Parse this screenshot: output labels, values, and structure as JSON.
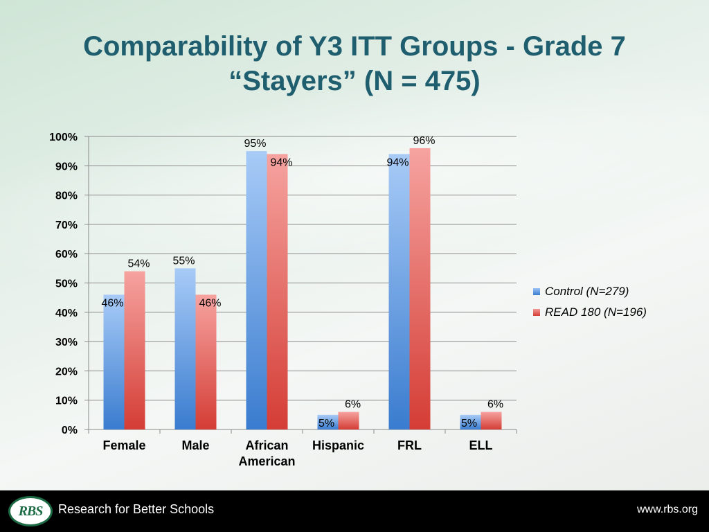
{
  "slide": {
    "title_line1": "Comparability of Y3 ITT Groups - Grade 7",
    "title_line2": "“Stayers” (N = 475)"
  },
  "chart_data": {
    "type": "bar",
    "categories": [
      "Female",
      "Male",
      "African\nAmerican",
      "Hispanic",
      "FRL",
      "ELL"
    ],
    "series": [
      {
        "name": "Control (N=279)",
        "values": [
          46,
          55,
          95,
          5,
          94,
          5
        ],
        "labels": [
          "46%",
          "55%",
          "95%",
          "5%",
          "94%",
          "5%"
        ],
        "color": "#4a86d4"
      },
      {
        "name": "READ 180 (N=196)",
        "values": [
          54,
          46,
          94,
          6,
          96,
          6
        ],
        "labels": [
          "54%",
          "46%",
          "94%",
          "6%",
          "96%",
          "6%"
        ],
        "color": "#d9473f"
      }
    ],
    "y_ticks": [
      "0%",
      "10%",
      "20%",
      "30%",
      "40%",
      "50%",
      "60%",
      "70%",
      "80%",
      "90%",
      "100%"
    ],
    "ylim": [
      0,
      100
    ],
    "grid": true,
    "legend_position": "right"
  },
  "legend": {
    "control": "Control (N=279)",
    "read180": "READ 180 (N=196)"
  },
  "footer": {
    "logo_text": "RBS",
    "org_name": "Research for Better Schools",
    "url": "www.rbs.org"
  }
}
